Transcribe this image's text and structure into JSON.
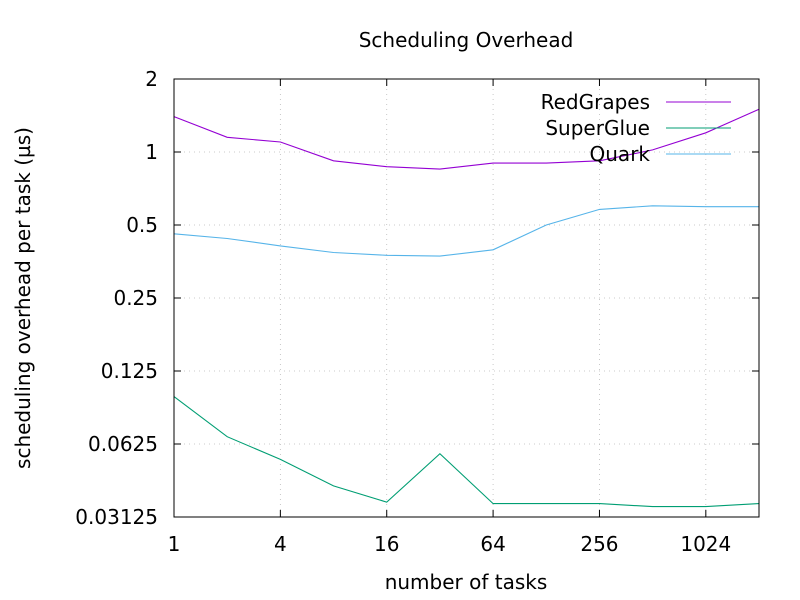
{
  "chart_data": {
    "type": "line",
    "title": "Scheduling Overhead",
    "xlabel": "number of tasks",
    "ylabel": "scheduling overhead per task (µs)",
    "x_scale": "log2",
    "y_scale": "log2",
    "xlim": [
      1,
      2048
    ],
    "ylim": [
      0.03125,
      2
    ],
    "x_ticks": [
      1,
      4,
      16,
      64,
      256,
      1024
    ],
    "x_tick_labels": [
      "1",
      "4",
      "16",
      "64",
      "256",
      "1024"
    ],
    "y_ticks": [
      0.03125,
      0.0625,
      0.125,
      0.25,
      0.5,
      1,
      2
    ],
    "y_tick_labels": [
      "0.03125",
      "0.0625",
      "0.125",
      "0.25",
      "0.5",
      "1",
      "2"
    ],
    "grid": true,
    "legend_position": "top-right",
    "x": [
      1,
      2,
      4,
      8,
      16,
      32,
      64,
      128,
      256,
      512,
      1024,
      2048
    ],
    "series": [
      {
        "name": "RedGrapes",
        "color": "#9400d3",
        "values": [
          1.4,
          1.15,
          1.1,
          0.92,
          0.87,
          0.85,
          0.9,
          0.9,
          0.92,
          1.02,
          1.2,
          1.5
        ]
      },
      {
        "name": "SuperGlue",
        "color": "#009e73",
        "values": [
          0.098,
          0.067,
          0.054,
          0.042,
          0.036,
          0.057,
          0.0355,
          0.0355,
          0.0355,
          0.0345,
          0.0345,
          0.0355
        ]
      },
      {
        "name": "Quark",
        "color": "#56b4e9",
        "values": [
          0.46,
          0.44,
          0.41,
          0.385,
          0.375,
          0.372,
          0.395,
          0.5,
          0.58,
          0.6,
          0.595,
          0.595
        ]
      }
    ]
  }
}
